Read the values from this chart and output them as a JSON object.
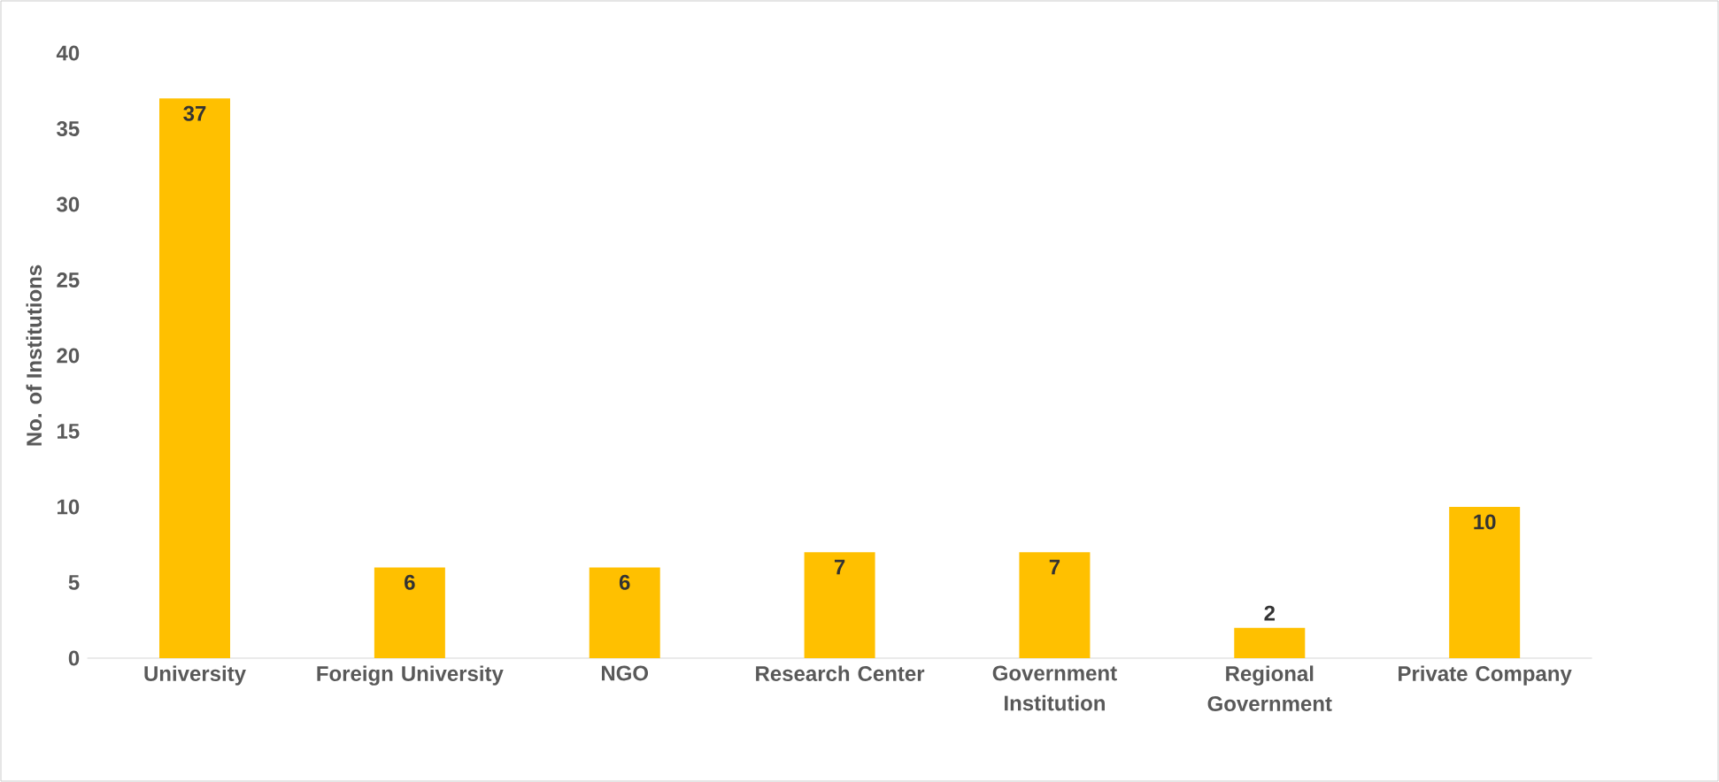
{
  "chart_data": {
    "type": "bar",
    "ylabel": "No. of Institutions",
    "categories": [
      "University",
      "Foreign University",
      "NGO",
      "Research Center",
      "Government Institution",
      "Regional Government",
      "Private Company"
    ],
    "values": [
      37,
      6,
      6,
      7,
      7,
      2,
      10
    ],
    "color": "#ffc000",
    "ylim": [
      0,
      40
    ],
    "yticks": [
      0,
      5,
      10,
      15,
      20,
      25,
      30,
      35,
      40
    ],
    "grid": false,
    "data_labels": true
  }
}
